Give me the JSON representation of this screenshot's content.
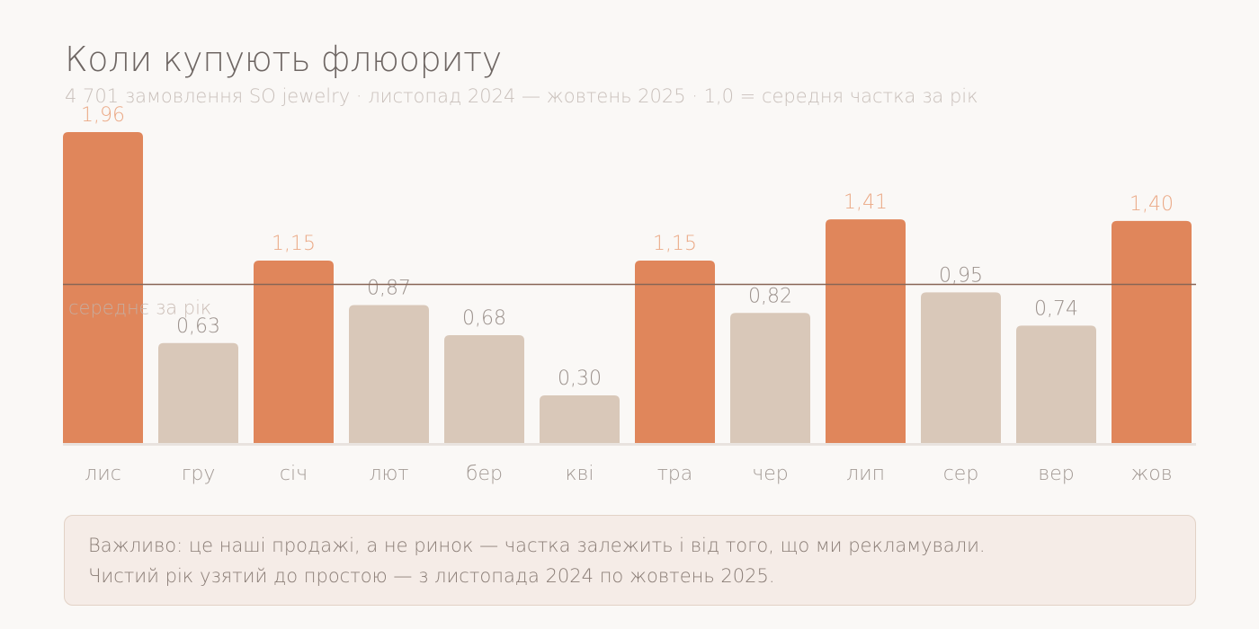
{
  "title": "Коли купують флюориту",
  "subtitle": "4 701 замовлення SO jewelry · листопад 2024 — жовтень 2025 · 1,0 = середня частка за рік",
  "colors": {
    "background": "#faf8f6",
    "highlight_bar": "#e0865b",
    "normal_bar": "#d9c8b9",
    "highlight_label": "#eba986",
    "normal_label": "#9b918c",
    "month_label": "#a39a95",
    "reference_line": "#876556",
    "note_background": "#f5ece7",
    "note_border": "#e2d2c6"
  },
  "chart_data": {
    "type": "bar",
    "categories": [
      "лис",
      "гру",
      "січ",
      "лют",
      "бер",
      "кві",
      "тра",
      "чер",
      "лип",
      "сер",
      "вер",
      "жов"
    ],
    "values": [
      1.96,
      0.63,
      1.15,
      0.87,
      0.68,
      0.3,
      1.15,
      0.82,
      1.41,
      0.95,
      0.74,
      1.4
    ],
    "value_labels": [
      "1,96",
      "0,63",
      "1,15",
      "0,87",
      "0,68",
      "0,30",
      "1,15",
      "0,82",
      "1,41",
      "0,95",
      "0,74",
      "1,40"
    ],
    "highlighted": [
      true,
      false,
      true,
      false,
      false,
      false,
      true,
      false,
      true,
      false,
      false,
      true
    ],
    "ylim": [
      0,
      2.0
    ],
    "reference_line": {
      "value": 1.0,
      "label": "середнє за рік"
    },
    "grid": false,
    "legend": "none"
  },
  "note": {
    "line1": "Важливо: це наші продажі, а не ринок — частка залежить і від того, що ми рекламували.",
    "line2": "Чистий рік узятий до простою — з листопада 2024 по жовтень 2025."
  }
}
